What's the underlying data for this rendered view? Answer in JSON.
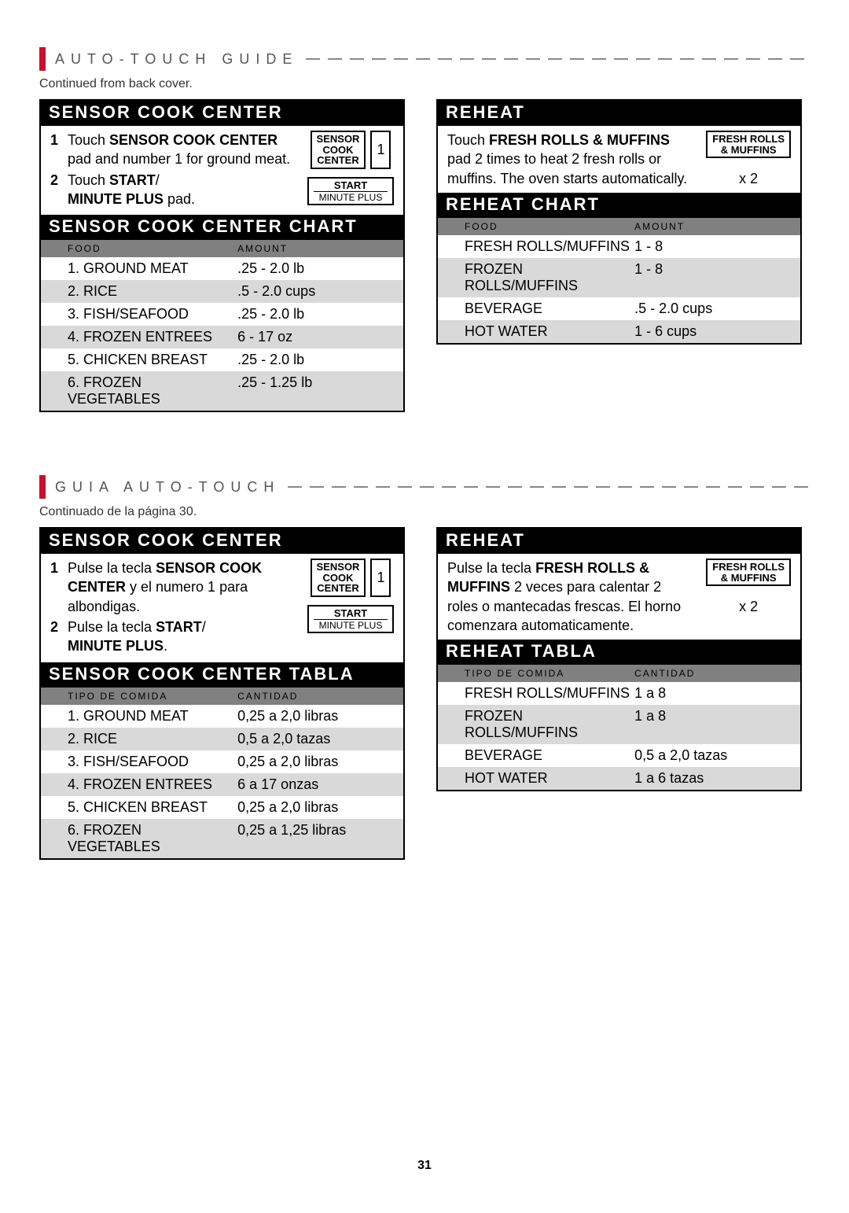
{
  "en": {
    "header_title": "AUTO-TOUCH GUIDE",
    "continued": "Continued from back cover.",
    "sensor": {
      "title": "SENSOR COOK CENTER",
      "step1_pre": "Touch ",
      "step1_bold": "SENSOR COOK CENTER",
      "step1_post": " pad and number 1 for ground meat.",
      "step2_pre": "Touch ",
      "step2_bold": "START",
      "step2_slash": "/",
      "step2_bold2": "MINUTE PLUS",
      "step2_post": " pad.",
      "btn_sensor_l1": "SENSOR",
      "btn_sensor_l2": "COOK",
      "btn_sensor_l3": "CENTER",
      "btn_num": "1",
      "btn_start": "START",
      "btn_minute": "MINUTE PLUS",
      "chart_title": "SENSOR COOK CENTER CHART",
      "col_food": "FOOD",
      "col_amount": "AMOUNT",
      "rows": [
        {
          "f": "1. GROUND MEAT",
          "a": ".25 - 2.0 lb"
        },
        {
          "f": "2. RICE",
          "a": ".5 - 2.0 cups"
        },
        {
          "f": "3. FISH/SEAFOOD",
          "a": ".25 - 2.0 lb"
        },
        {
          "f": "4. FROZEN ENTREES",
          "a": "6 - 17 oz"
        },
        {
          "f": "5. CHICKEN BREAST",
          "a": ".25 - 2.0 lb"
        },
        {
          "f": "6. FROZEN VEGETABLES",
          "a": ".25 - 1.25 lb"
        }
      ]
    },
    "reheat": {
      "title": "REHEAT",
      "body_pre": "Touch ",
      "body_bold": "FRESH ROLLS & MUFFINS",
      "body_post": " pad 2 times to heat 2 fresh rolls or muffins. The oven starts automatically.",
      "btn_l1": "FRESH ROLLS",
      "btn_l2": "& MUFFINS",
      "x2": "x 2",
      "chart_title": "REHEAT CHART",
      "col_food": "FOOD",
      "col_amount": "AMOUNT",
      "rows": [
        {
          "f": "FRESH ROLLS/MUFFINS",
          "a": "1 - 8"
        },
        {
          "f": "FROZEN ROLLS/MUFFINS",
          "a": "1 - 8"
        },
        {
          "f": "BEVERAGE",
          "a": ".5 - 2.0 cups"
        },
        {
          "f": "HOT WATER",
          "a": "1 - 6 cups"
        }
      ]
    }
  },
  "es": {
    "header_title": "GUIA AUTO-TOUCH",
    "continued": "Continuado de la página 30.",
    "sensor": {
      "title": "SENSOR COOK CENTER",
      "step1_pre": "Pulse la tecla ",
      "step1_bold": "SENSOR COOK CENTER",
      "step1_post": " y el numero 1    para albondigas.",
      "step2_pre": "Pulse la tecla ",
      "step2_bold": "START",
      "step2_slash": "/",
      "step2_bold2": "MINUTE PLUS",
      "step2_post": ".",
      "btn_sensor_l1": "SENSOR",
      "btn_sensor_l2": "COOK",
      "btn_sensor_l3": "CENTER",
      "btn_num": "1",
      "btn_start": "START",
      "btn_minute": "MINUTE PLUS",
      "chart_title": "SENSOR COOK CENTER TABLA",
      "col_food": "TIPO DE COMIDA",
      "col_amount": "CANTIDAD",
      "rows": [
        {
          "f": "1. GROUND MEAT",
          "a": "0,25 a 2,0 libras"
        },
        {
          "f": "2. RICE",
          "a": "0,5 a 2,0 tazas"
        },
        {
          "f": "3. FISH/SEAFOOD",
          "a": "0,25 a 2,0 libras"
        },
        {
          "f": "4. FROZEN ENTREES",
          "a": "6 a 17 onzas"
        },
        {
          "f": "5. CHICKEN BREAST",
          "a": "0,25 a 2,0 libras"
        },
        {
          "f": "6. FROZEN VEGETABLES",
          "a": "0,25 a 1,25 libras"
        }
      ]
    },
    "reheat": {
      "title": "REHEAT",
      "body_pre": "Pulse la tecla ",
      "body_bold": "FRESH ROLLS & MUFFINS",
      "body_post": " 2 veces para calentar 2 roles o mantecadas frescas. El horno comenzara automaticamente.",
      "btn_l1": "FRESH ROLLS",
      "btn_l2": "& MUFFINS",
      "x2": "x 2",
      "chart_title": "REHEAT TABLA",
      "col_food": "TIPO DE COMIDA",
      "col_amount": "CANTIDAD",
      "rows": [
        {
          "f": "FRESH ROLLS/MUFFINS",
          "a": "1 a 8"
        },
        {
          "f": "FROZEN ROLLS/MUFFINS",
          "a": "1 a 8"
        },
        {
          "f": "BEVERAGE",
          "a": "0,5 a 2,0 tazas"
        },
        {
          "f": "HOT WATER",
          "a": "1 a 6 tazas"
        }
      ]
    }
  },
  "page_number": "31",
  "style": {
    "accent_color": "#c8102e",
    "black": "#000000",
    "header_gray": "#808080",
    "row_alt_gray": "#d9d9d9",
    "text_gray": "#555555",
    "background": "#ffffff",
    "body_fontsize": 18,
    "title_fontsize": 22,
    "small_fontsize": 12
  }
}
